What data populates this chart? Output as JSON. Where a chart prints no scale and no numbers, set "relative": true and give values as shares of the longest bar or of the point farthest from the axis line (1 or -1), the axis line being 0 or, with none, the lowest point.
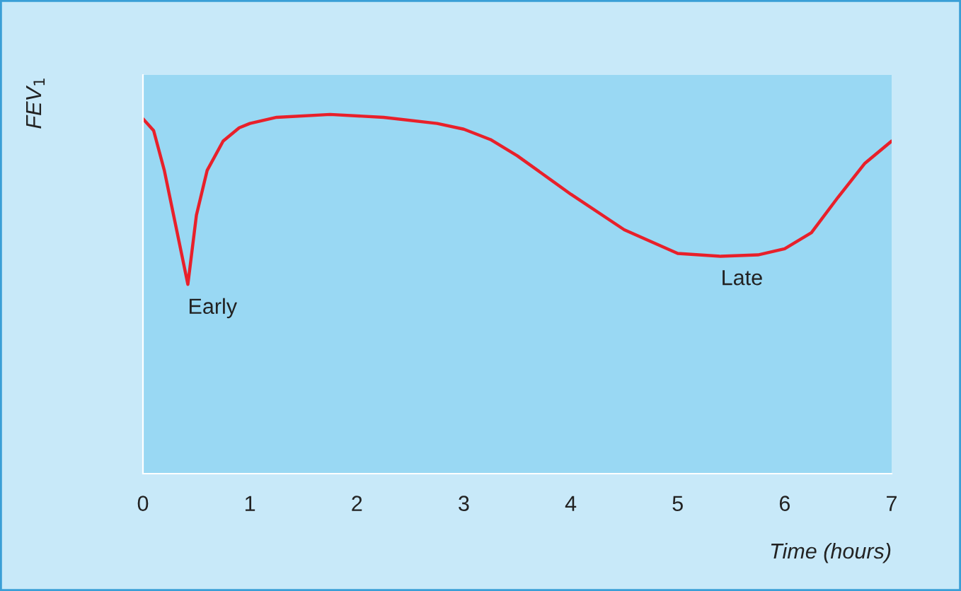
{
  "chart_data": {
    "type": "line",
    "relative": true,
    "xlabel": "Time (hours)",
    "ylabel": "FEV$_{1}$",
    "xlim": [
      0,
      7
    ],
    "xticks": [
      0,
      1,
      2,
      3,
      4,
      5,
      6,
      7
    ],
    "grid": false,
    "marker": "none",
    "line_style": "solid",
    "x": [
      0,
      0.1,
      0.2,
      0.3,
      0.42,
      0.5,
      0.6,
      0.75,
      0.9,
      1.0,
      1.25,
      1.75,
      2.25,
      2.75,
      3.0,
      3.25,
      3.5,
      4.0,
      4.5,
      5.0,
      5.4,
      5.75,
      6.0,
      6.25,
      6.5,
      6.75,
      7.0
    ],
    "series": [
      {
        "color": "#e8202a",
        "values": [
          0.988,
          0.955,
          0.844,
          0.7,
          0.527,
          0.72,
          0.844,
          0.926,
          0.963,
          0.975,
          0.992,
          1.0,
          0.992,
          0.975,
          0.959,
          0.93,
          0.885,
          0.778,
          0.679,
          0.613,
          0.605,
          0.609,
          0.626,
          0.671,
          0.77,
          0.864,
          0.926
        ]
      }
    ],
    "annotations": [
      {
        "text": "Early",
        "x": 0.42,
        "y": 0.527
      },
      {
        "text": "Late",
        "x": 5.6,
        "y": 0.607
      }
    ]
  }
}
